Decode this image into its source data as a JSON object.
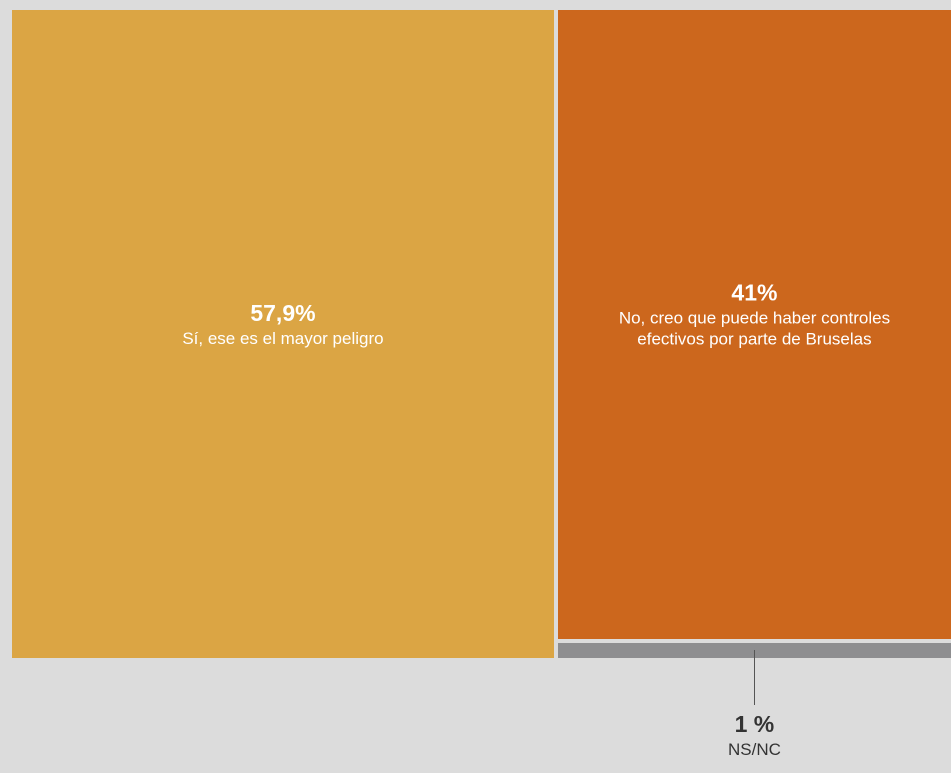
{
  "chart_data": {
    "type": "treemap",
    "categories": [
      "Sí, ese es el mayor peligro",
      "No, creo que puede haber controles efectivos por parte de Bruselas",
      "NS/NC"
    ],
    "values": [
      57.9,
      41,
      1
    ],
    "value_labels": [
      "57,9%",
      "41%",
      "1 %"
    ],
    "colors": [
      "#dba544",
      "#cc671d",
      "#8e8e90"
    ]
  }
}
